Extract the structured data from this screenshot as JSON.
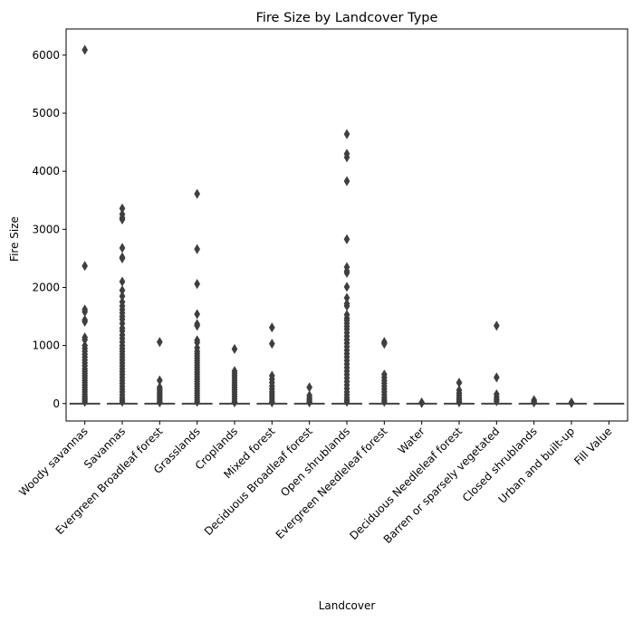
{
  "chart_data": {
    "type": "box",
    "title": "Fire Size by Landcover Type",
    "xlabel": "Landcover",
    "ylabel": "Fire Size",
    "ylim": [
      -300,
      6450
    ],
    "yticks": [
      0,
      1000,
      2000,
      3000,
      4000,
      5000,
      6000
    ],
    "grid": false,
    "legend": "none",
    "colors": {
      "box": "#3f3f3f",
      "axis": "#000000",
      "background": "#ffffff"
    },
    "categories": [
      "Woody savannas",
      "Savannas",
      "Evergreen Broadleaf forest",
      "Grasslands",
      "Croplands",
      "Mixed forest",
      "Deciduous Broadleaf forest",
      "Open shrublands",
      "Evergreen Needleleaf forest",
      "Water",
      "Deciduous Needleleaf forest",
      "Barren or sparsely vegetated",
      "Closed shrublands",
      "Urban and built-up",
      "Fill Value"
    ],
    "series": [
      {
        "median": 0,
        "q1": 0,
        "q3": 0,
        "outliers": [
          6090,
          2370,
          1620,
          1580,
          1440,
          1410,
          1140,
          1100,
          1000,
          950,
          900,
          850,
          800,
          750,
          700,
          650,
          600,
          560,
          520,
          480,
          440,
          400,
          360,
          320,
          280,
          240,
          200,
          160,
          120,
          90,
          60,
          30
        ]
      },
      {
        "median": 0,
        "q1": 0,
        "q3": 0,
        "outliers": [
          3360,
          3260,
          3200,
          3170,
          2680,
          2520,
          2500,
          2100,
          1950,
          1850,
          1750,
          1680,
          1620,
          1560,
          1500,
          1450,
          1380,
          1300,
          1250,
          1180,
          1120,
          1060,
          1000,
          950,
          900,
          850,
          800,
          750,
          700,
          650,
          600,
          550,
          500,
          450,
          400,
          350,
          300,
          250,
          200,
          150,
          100,
          60,
          30
        ]
      },
      {
        "median": 0,
        "q1": 0,
        "q3": 0,
        "outliers": [
          1060,
          400,
          280,
          250,
          220,
          190,
          160,
          130,
          100,
          70,
          40,
          20
        ]
      },
      {
        "median": 0,
        "q1": 0,
        "q3": 0,
        "outliers": [
          3610,
          2660,
          2060,
          1540,
          1370,
          1340,
          1090,
          1050,
          960,
          900,
          860,
          820,
          780,
          740,
          700,
          660,
          620,
          580,
          540,
          500,
          460,
          420,
          380,
          340,
          300,
          260,
          220,
          180,
          140,
          100,
          60,
          30
        ]
      },
      {
        "median": 0,
        "q1": 0,
        "q3": 0,
        "outliers": [
          940,
          560,
          520,
          480,
          440,
          400,
          360,
          320,
          280,
          240,
          200,
          160,
          120,
          80,
          40,
          20
        ]
      },
      {
        "median": 0,
        "q1": 0,
        "q3": 0,
        "outliers": [
          1310,
          1030,
          480,
          420,
          360,
          300,
          250,
          200,
          160,
          120,
          80,
          40,
          20
        ]
      },
      {
        "median": 0,
        "q1": 0,
        "q3": 0,
        "outliers": [
          280,
          140,
          100,
          70,
          40,
          20
        ]
      },
      {
        "median": 0,
        "q1": 0,
        "q3": 0,
        "outliers": [
          4640,
          4300,
          4240,
          3830,
          2830,
          2350,
          2280,
          2250,
          2010,
          1820,
          1720,
          1680,
          1530,
          1470,
          1430,
          1380,
          1330,
          1280,
          1220,
          1160,
          1100,
          1040,
          980,
          920,
          860,
          800,
          740,
          680,
          620,
          560,
          500,
          440,
          380,
          320,
          260,
          200,
          150,
          100,
          60,
          30
        ]
      },
      {
        "median": 0,
        "q1": 0,
        "q3": 0,
        "outliers": [
          1060,
          1030,
          500,
          450,
          400,
          350,
          300,
          250,
          200,
          150,
          100,
          60,
          30
        ]
      },
      {
        "median": 0,
        "q1": 0,
        "q3": 0,
        "outliers": [
          20,
          10
        ]
      },
      {
        "median": 0,
        "q1": 0,
        "q3": 0,
        "outliers": [
          360,
          230,
          180,
          140,
          100,
          70,
          40,
          20
        ]
      },
      {
        "median": 0,
        "q1": 0,
        "q3": 0,
        "outliers": [
          1340,
          450,
          160,
          110,
          70,
          40
        ]
      },
      {
        "median": 0,
        "q1": 0,
        "q3": 0,
        "outliers": [
          60,
          40,
          20
        ]
      },
      {
        "median": 0,
        "q1": 0,
        "q3": 0,
        "outliers": [
          20,
          10
        ]
      },
      {
        "median": 0,
        "q1": 0,
        "q3": 0,
        "outliers": []
      }
    ]
  }
}
